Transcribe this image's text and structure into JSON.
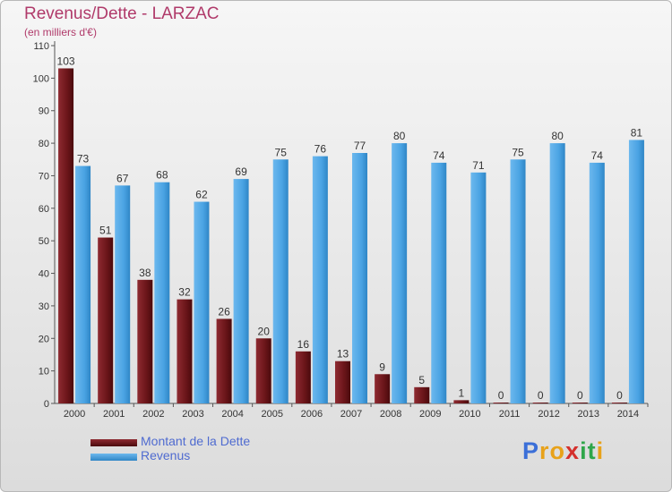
{
  "title": "Revenus/Dette - LARZAC",
  "subtitle": "(en milliers d'€)",
  "logo_text": "Proxiti",
  "chart_data": {
    "type": "bar",
    "categories": [
      "2000",
      "2001",
      "2002",
      "2003",
      "2004",
      "2005",
      "2006",
      "2007",
      "2008",
      "2009",
      "2010",
      "2011",
      "2012",
      "2013",
      "2014"
    ],
    "series": [
      {
        "name": "Montant de la Dette",
        "color": "#7a1f24",
        "values": [
          103,
          51,
          38,
          32,
          26,
          20,
          16,
          13,
          9,
          5,
          1,
          0,
          0,
          0,
          0
        ]
      },
      {
        "name": "Revenus",
        "color": "#4aa3e3",
        "values": [
          73,
          67,
          68,
          62,
          69,
          75,
          76,
          77,
          80,
          74,
          71,
          75,
          80,
          74,
          81
        ]
      }
    ],
    "ylim": [
      0,
      110
    ],
    "yticks": [
      0,
      10,
      20,
      30,
      40,
      50,
      60,
      70,
      80,
      90,
      100,
      110
    ],
    "grid": false,
    "legend_position": "bottom-left"
  }
}
